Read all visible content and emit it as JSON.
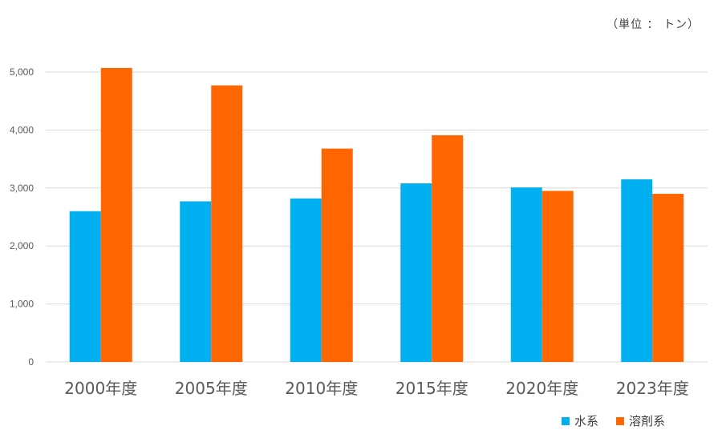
{
  "unit_note": "（単位 ： トン）",
  "colors": {
    "series1": "#00B0F0",
    "series2": "#FF6600",
    "grid": "#D9D9D9",
    "text": "#595959"
  },
  "chart_data": {
    "type": "bar",
    "categories": [
      "2000年度",
      "2005年度",
      "2010年度",
      "2015年度",
      "2020年度",
      "2023年度"
    ],
    "series": [
      {
        "name": "水系",
        "values": [
          2600,
          2770,
          2820,
          3080,
          3010,
          3150
        ]
      },
      {
        "name": "溶剤系",
        "values": [
          5070,
          4770,
          3680,
          3910,
          2950,
          2900
        ]
      }
    ],
    "ylim": [
      0,
      5000
    ],
    "yticks": [
      "0",
      "1,000",
      "2,000",
      "3,000",
      "4,000",
      "5,000"
    ],
    "grid": true,
    "legend_position": "bottom-right"
  }
}
